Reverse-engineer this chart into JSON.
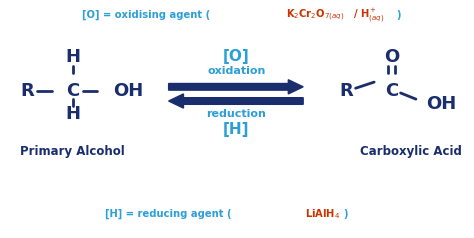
{
  "bg_color": "#ffffff",
  "dark_blue": "#1a2e6e",
  "cyan_blue": "#2b9fd6",
  "orange_red": "#cc3300",
  "fig_width": 4.74,
  "fig_height": 2.38,
  "dpi": 100,
  "xlim": [
    0,
    10
  ],
  "ylim": [
    0,
    5
  ],
  "top_blue": "[O] = oxidising agent (",
  "top_orange1": "K",
  "top_orange2": "Cr",
  "top_orange3": "O",
  "top_close": ")",
  "bottom_blue": "[H] = reducing agent (",
  "bottom_orange": "LiAlH",
  "bottom_close": ")"
}
